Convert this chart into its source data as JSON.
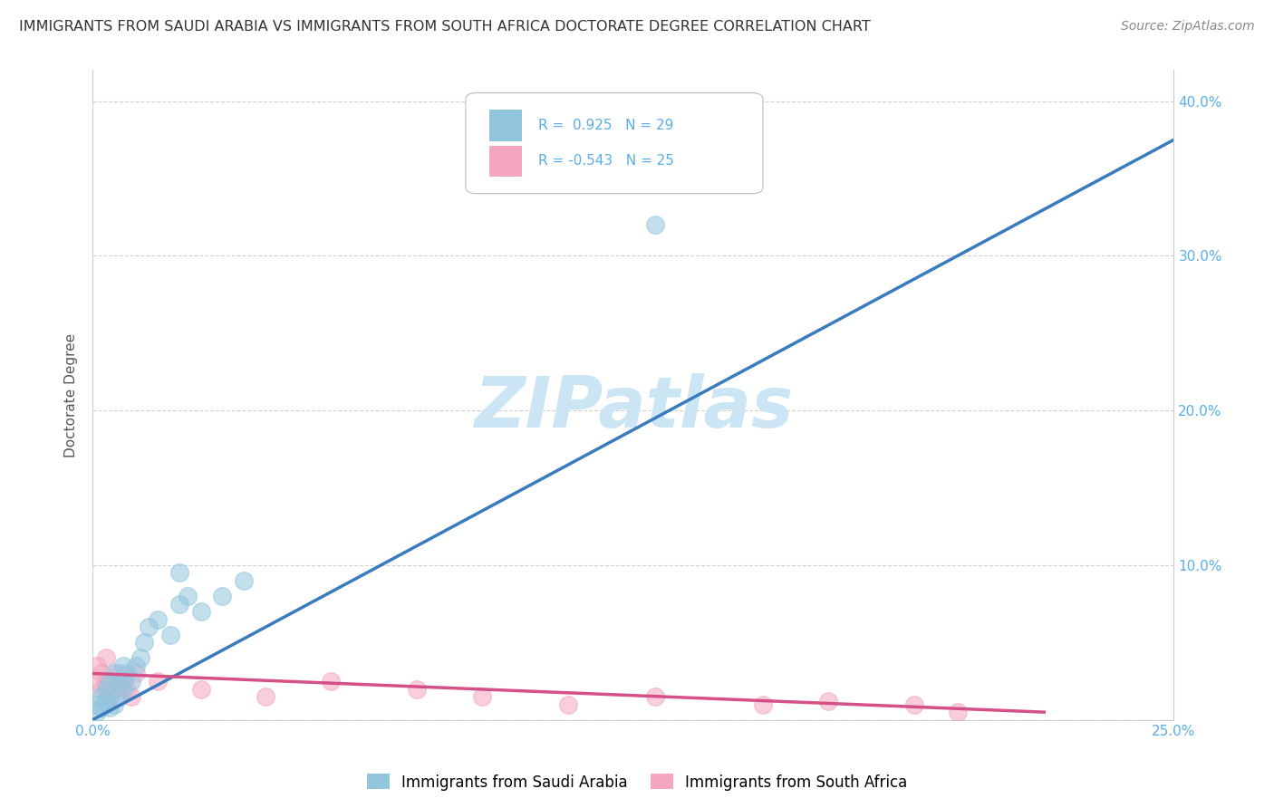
{
  "title": "IMMIGRANTS FROM SAUDI ARABIA VS IMMIGRANTS FROM SOUTH AFRICA DOCTORATE DEGREE CORRELATION CHART",
  "source": "Source: ZipAtlas.com",
  "ylabel": "Doctorate Degree",
  "xlim": [
    0.0,
    0.25
  ],
  "ylim": [
    0.0,
    0.42
  ],
  "r_saudi": 0.925,
  "n_saudi": 29,
  "r_south_africa": -0.543,
  "n_south_africa": 25,
  "legend_saudi": "Immigrants from Saudi Arabia",
  "legend_south_africa": "Immigrants from South Africa",
  "color_saudi": "#92c5de",
  "color_south_africa": "#f4a6c0",
  "color_saudi_line": "#3a7abf",
  "color_south_africa_line": "#d45087",
  "watermark": "ZIPatlas",
  "watermark_color": "#cce5f5",
  "saudi_x": [
    0.001,
    0.001,
    0.002,
    0.002,
    0.003,
    0.003,
    0.004,
    0.004,
    0.005,
    0.005,
    0.006,
    0.006,
    0.007,
    0.007,
    0.008,
    0.009,
    0.01,
    0.011,
    0.012,
    0.013,
    0.015,
    0.018,
    0.02,
    0.022,
    0.025,
    0.03,
    0.035,
    0.13,
    0.02
  ],
  "saudi_y": [
    0.005,
    0.01,
    0.008,
    0.015,
    0.012,
    0.02,
    0.008,
    0.025,
    0.01,
    0.03,
    0.015,
    0.025,
    0.02,
    0.035,
    0.03,
    0.025,
    0.035,
    0.04,
    0.05,
    0.06,
    0.065,
    0.055,
    0.075,
    0.08,
    0.07,
    0.08,
    0.09,
    0.32,
    0.095
  ],
  "sa_x": [
    0.001,
    0.001,
    0.002,
    0.002,
    0.003,
    0.003,
    0.004,
    0.005,
    0.006,
    0.007,
    0.008,
    0.009,
    0.01,
    0.015,
    0.025,
    0.04,
    0.055,
    0.075,
    0.09,
    0.11,
    0.13,
    0.155,
    0.17,
    0.19,
    0.2
  ],
  "sa_y": [
    0.025,
    0.035,
    0.02,
    0.03,
    0.025,
    0.04,
    0.015,
    0.02,
    0.03,
    0.025,
    0.02,
    0.015,
    0.03,
    0.025,
    0.02,
    0.015,
    0.025,
    0.02,
    0.015,
    0.01,
    0.015,
    0.01,
    0.012,
    0.01,
    0.005
  ],
  "blue_line_x": [
    0.0,
    0.25
  ],
  "blue_line_y": [
    0.0,
    0.375
  ],
  "pink_line_x": [
    0.0,
    0.22
  ],
  "pink_line_y": [
    0.03,
    0.005
  ],
  "background_color": "#ffffff",
  "grid_color": "#d0d0d0",
  "tick_color": "#5aaee8",
  "spine_color": "#cccccc"
}
